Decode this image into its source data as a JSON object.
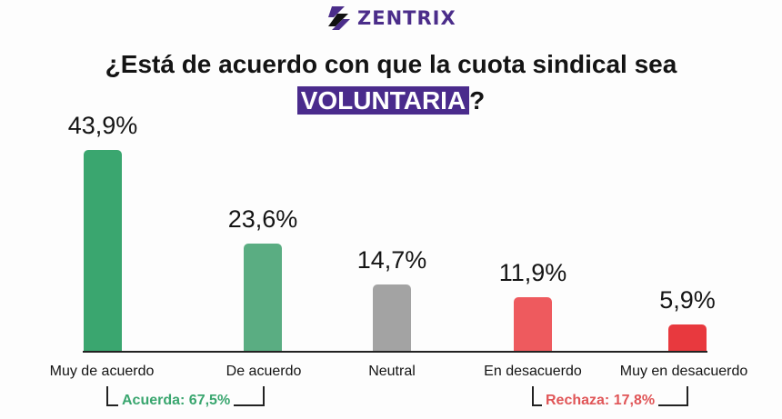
{
  "brand": {
    "name": "ZENTRIX",
    "color": "#4b2d8a"
  },
  "title": {
    "line1": "¿Está de acuerdo con que la cuota sindical sea",
    "highlight": "VOLUNTARIA",
    "suffix": "?",
    "highlight_bg": "#4a2b8c"
  },
  "chart_data": {
    "type": "bar",
    "title": "¿Está de acuerdo con que la cuota sindical sea VOLUNTARIA?",
    "categories": [
      "Muy de acuerdo",
      "De acuerdo",
      "Neutral",
      "En desacuerdo",
      "Muy en desacuerdo"
    ],
    "values": [
      43.9,
      23.6,
      14.7,
      11.9,
      5.9
    ],
    "labels": [
      "43,9%",
      "23,6%",
      "14,7%",
      "11,9%",
      "5,9%"
    ],
    "colors": [
      "#3aa66f",
      "#5aad82",
      "#a3a3a3",
      "#ee5a5e",
      "#e8393e"
    ],
    "xlabel": "",
    "ylabel": "",
    "ylim": [
      0,
      50
    ],
    "grid": false,
    "legend": "none",
    "groups": [
      {
        "label": "Acuerda: 67,5%",
        "value": 67.5,
        "color": "#3aa66f",
        "spans": [
          "Muy de acuerdo",
          "De acuerdo"
        ]
      },
      {
        "label": "Rechaza: 17,8%",
        "value": 17.8,
        "color": "#e05557",
        "spans": [
          "En desacuerdo",
          "Muy en desacuerdo"
        ]
      }
    ]
  }
}
